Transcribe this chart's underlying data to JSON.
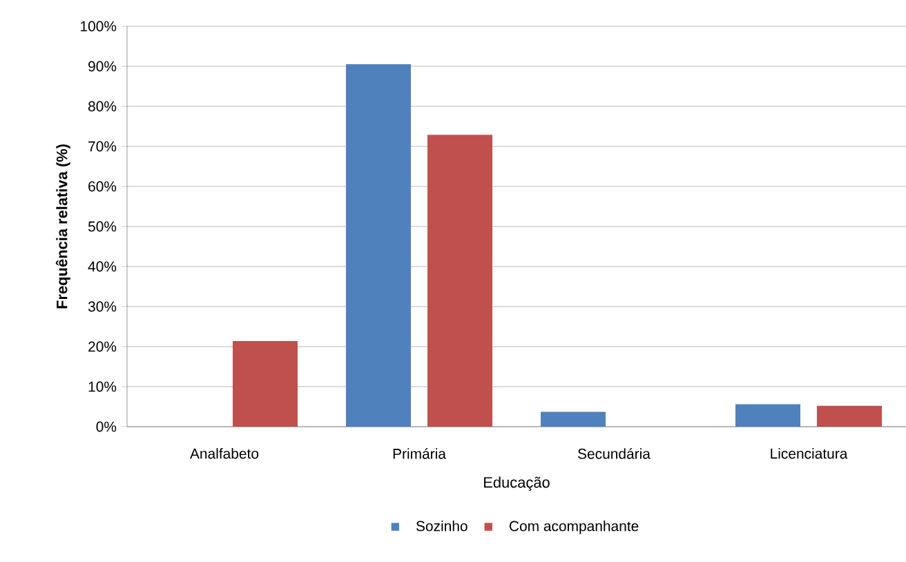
{
  "chart_data": {
    "type": "bar",
    "xlabel": "Educação",
    "ylabel": "Frequência relativa (%)",
    "categories": [
      "Analfabeto",
      "Primária",
      "Secundária",
      "Licenciatura"
    ],
    "series": [
      {
        "name": "Sozinho",
        "color": "#4f81bd",
        "values": [
          0,
          90.5,
          3.7,
          5.6
        ]
      },
      {
        "name": "Com acompanhante",
        "color": "#c0504d",
        "values": [
          21.4,
          72.9,
          0,
          5.2
        ]
      }
    ],
    "ylim": [
      0,
      100
    ],
    "yticks": [
      {
        "value": 0,
        "label": "0%"
      },
      {
        "value": 10,
        "label": "10%"
      },
      {
        "value": 20,
        "label": "20%"
      },
      {
        "value": 30,
        "label": "30%"
      },
      {
        "value": 40,
        "label": "40%"
      },
      {
        "value": 50,
        "label": "50%"
      },
      {
        "value": 60,
        "label": "60%"
      },
      {
        "value": 70,
        "label": "70%"
      },
      {
        "value": 80,
        "label": "80%"
      },
      {
        "value": 90,
        "label": "90%"
      },
      {
        "value": 100,
        "label": "100%"
      }
    ],
    "grid": "y",
    "legend": "bottom"
  }
}
